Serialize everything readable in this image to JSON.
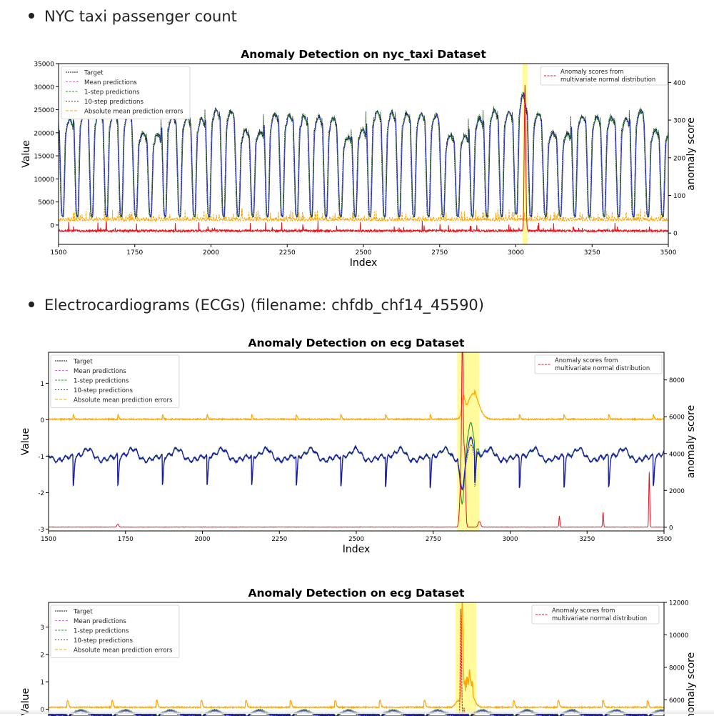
{
  "bullets": [
    {
      "text": "NYC taxi passenger count"
    },
    {
      "text": "Electrocardiograms (ECGs) (filename: chfdb_chf14_45590)"
    }
  ],
  "legend_left": [
    "Target",
    "Mean predictions",
    "1-step predictions",
    "10-step predictions",
    "Absolute mean prediction errors"
  ],
  "legend_right": [
    "Anomaly scores from",
    "multivariate normal distribution"
  ],
  "colors": {
    "target": "#111111",
    "mean": "#d070d0",
    "one_step": "#2a9a2a",
    "ten_step": "#2828e0",
    "error": "#ffa500",
    "score": "#e8121e",
    "highlight": "#fffa9c"
  },
  "chart_data": [
    {
      "type": "line",
      "title": "Anomaly Detection on nyc_taxi Dataset",
      "xlabel": "Index",
      "ylabel": "Value",
      "ylabel_right": "anomaly score",
      "xlim": [
        1500,
        3500
      ],
      "ylim": [
        -4200,
        35000
      ],
      "ylim_right": [
        -30,
        450
      ],
      "x_ticks": [
        1500,
        1750,
        2000,
        2250,
        2500,
        2750,
        3000,
        3250,
        3500
      ],
      "y_ticks": [
        0,
        5000,
        10000,
        15000,
        20000,
        25000,
        30000,
        35000
      ],
      "y_ticks_right": [
        0,
        100,
        200,
        300,
        400
      ],
      "highlight_x": [
        3022,
        3038
      ],
      "series": [
        {
          "name": "Target",
          "approx": "daily cycle ~48 steps, troughs ~2000, peaks ~17000-25000"
        },
        {
          "name": "Mean predictions"
        },
        {
          "name": "1-step predictions"
        },
        {
          "name": "10-step predictions"
        },
        {
          "name": "Absolute mean prediction errors",
          "approx": "mostly 0-3000, spikes to ~4500"
        },
        {
          "name": "Anomaly scores from multivariate normal distribution",
          "approx": "baseline ~0-10, spike ~400 at x≈3030"
        }
      ]
    },
    {
      "type": "line",
      "title": "Anomaly Detection on ecg Dataset",
      "xlabel": "Index",
      "ylabel": "Value",
      "ylabel_right": "anomaly score",
      "xlim": [
        1500,
        3500
      ],
      "ylim": [
        -3.05,
        1.85
      ],
      "ylim_right": [
        -200,
        9500
      ],
      "x_ticks": [
        1500,
        1750,
        2000,
        2250,
        2500,
        2750,
        3000,
        3250,
        3500
      ],
      "y_ticks": [
        -3,
        -2,
        -1,
        0,
        1
      ],
      "y_ticks_right": [
        0,
        2000,
        4000,
        6000,
        8000
      ],
      "highlight_x": [
        2828,
        2900
      ],
      "series": [
        {
          "name": "Target",
          "approx": "baseline -1, beats every ~145 steps dipping to ~-1.8"
        },
        {
          "name": "Mean predictions"
        },
        {
          "name": "1-step predictions"
        },
        {
          "name": "10-step predictions"
        },
        {
          "name": "Absolute mean prediction errors",
          "approx": "~0.0, bumps near 0.2, rise to ~0.75 at x≈2880"
        },
        {
          "name": "Anomaly scores from multivariate normal distribution",
          "approx": "~0, spike ~9000 at x≈2845, bumps at 3160, 3300, 3450"
        }
      ]
    },
    {
      "type": "line",
      "title": "Anomaly Detection on ecg Dataset",
      "xlabel": "",
      "ylabel": "Value",
      "ylabel_right": "anomaly score",
      "xlim": [
        1500,
        3500
      ],
      "ylim": [
        -0.25,
        3.9
      ],
      "ylim_right": [
        5000,
        12000
      ],
      "x_ticks": [],
      "y_ticks": [
        0,
        1,
        2,
        3
      ],
      "y_ticks_right": [
        6000,
        8000,
        10000,
        12000
      ],
      "highlight_x": [
        2822,
        2890
      ],
      "series": [
        {
          "name": "Target"
        },
        {
          "name": "Mean predictions"
        },
        {
          "name": "1-step predictions"
        },
        {
          "name": "10-step predictions"
        },
        {
          "name": "Absolute mean prediction errors",
          "approx": "~0.05, small bumps, spike ~3.5 at x≈2845"
        },
        {
          "name": "Anomaly scores from multivariate normal distribution",
          "approx": "spike ~11500 at x≈2840"
        }
      ]
    }
  ]
}
